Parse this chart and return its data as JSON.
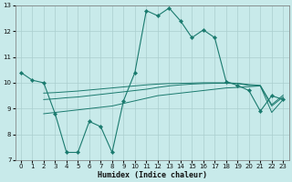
{
  "xlabel": "Humidex (Indice chaleur)",
  "x_values": [
    0,
    1,
    2,
    3,
    4,
    5,
    6,
    7,
    8,
    9,
    10,
    11,
    12,
    13,
    14,
    15,
    16,
    17,
    18,
    19,
    20,
    21,
    22,
    23
  ],
  "curve_main": [
    10.4,
    10.1,
    10.0,
    8.8,
    7.3,
    7.3,
    8.5,
    8.3,
    7.3,
    9.3,
    10.4,
    12.8,
    12.6,
    12.9,
    12.4,
    11.75,
    12.05,
    11.75,
    10.05,
    9.9,
    9.7,
    8.9,
    9.5,
    9.35
  ],
  "curve_a": [
    null,
    null,
    8.8,
    8.85,
    8.9,
    8.95,
    9.0,
    9.05,
    9.1,
    9.2,
    9.3,
    9.4,
    9.5,
    9.55,
    9.6,
    9.65,
    9.7,
    9.75,
    9.8,
    9.82,
    9.85,
    9.88,
    8.85,
    9.35
  ],
  "curve_b": [
    null,
    null,
    9.35,
    9.38,
    9.42,
    9.45,
    9.5,
    9.55,
    9.6,
    9.65,
    9.7,
    9.75,
    9.82,
    9.88,
    9.92,
    9.95,
    9.97,
    9.98,
    9.98,
    9.97,
    9.9,
    9.88,
    9.1,
    9.45
  ],
  "curve_c": [
    null,
    null,
    9.6,
    9.62,
    9.65,
    9.68,
    9.72,
    9.76,
    9.8,
    9.84,
    9.88,
    9.92,
    9.95,
    9.97,
    9.98,
    9.99,
    10.0,
    10.0,
    10.0,
    9.98,
    9.93,
    9.9,
    9.15,
    9.52
  ],
  "ylim": [
    7,
    13
  ],
  "yticks": [
    7,
    8,
    9,
    10,
    11,
    12,
    13
  ],
  "xlim_min": -0.5,
  "xlim_max": 23.5,
  "xticks": [
    0,
    1,
    2,
    3,
    4,
    5,
    6,
    7,
    8,
    9,
    10,
    11,
    12,
    13,
    14,
    15,
    16,
    17,
    18,
    19,
    20,
    21,
    22,
    23
  ],
  "line_color": "#1a7a6e",
  "bg_color": "#c8eaea",
  "grid_color": "#aacece"
}
